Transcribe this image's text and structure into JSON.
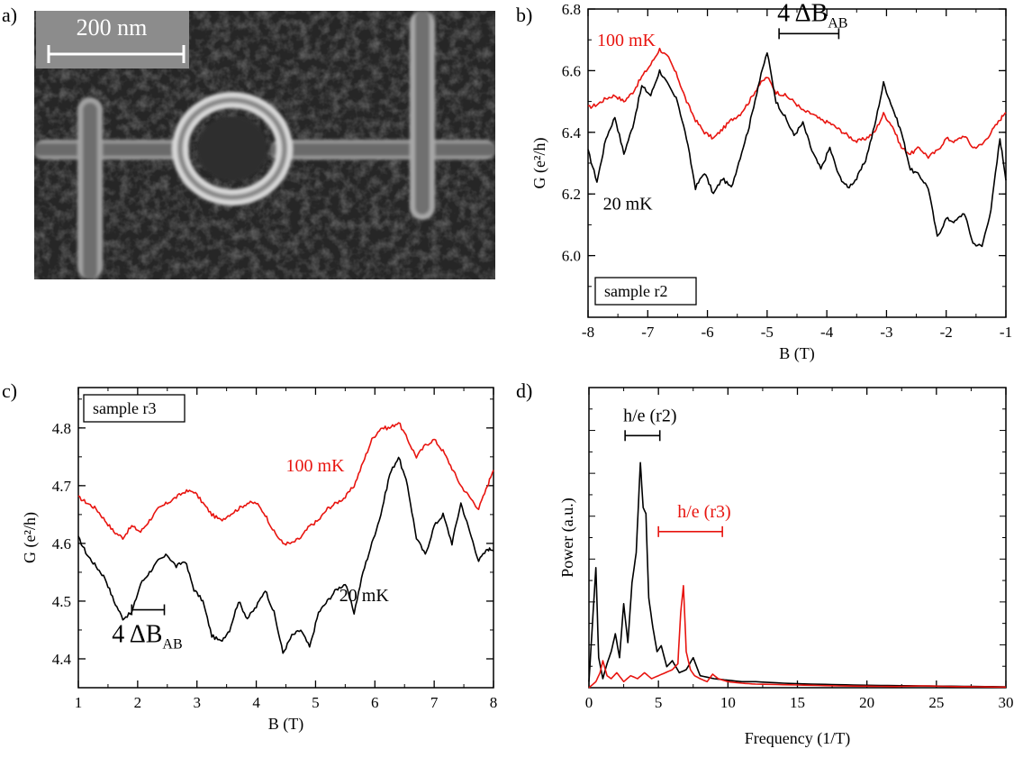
{
  "colors": {
    "black": "#000000",
    "red": "#e8140f",
    "sem_bg": "#202020",
    "sem_ring": "#d8d8d8"
  },
  "panel_a": {
    "label": "a)",
    "scalebar_text": "200 nm",
    "description_hidden": ""
  },
  "chart_data": [
    {
      "panel": "b)",
      "type": "line",
      "xlabel": "B (T)",
      "ylabel": "G (e²/h)",
      "xlim": [
        -8,
        -1
      ],
      "ylim": [
        5.8,
        6.8
      ],
      "xticks": [
        -8,
        -7,
        -6,
        -5,
        -4,
        -3,
        -2,
        -1
      ],
      "xtick_labels": [
        "-8",
        "-7",
        "-6",
        "-5",
        "-4",
        "-3",
        "-2",
        "-1"
      ],
      "yticks": [
        6.0,
        6.2,
        6.4,
        6.6,
        6.8
      ],
      "ytick_labels": [
        "6.0",
        "6.2",
        "6.4",
        "6.6",
        "6.8"
      ],
      "sample_label": "sample r2",
      "annotation": {
        "text": "4 ΔB",
        "sub": "AB",
        "bar_x": [
          -4.8,
          -3.8
        ],
        "bar_y": 6.72
      },
      "series": [
        {
          "name": "100 mK",
          "color": "#e8140f",
          "x": [
            -8.0,
            -7.85,
            -7.7,
            -7.55,
            -7.4,
            -7.25,
            -7.1,
            -6.95,
            -6.8,
            -6.65,
            -6.5,
            -6.35,
            -6.2,
            -6.05,
            -5.9,
            -5.75,
            -5.6,
            -5.45,
            -5.3,
            -5.15,
            -5.0,
            -4.85,
            -4.7,
            -4.55,
            -4.4,
            -4.25,
            -4.1,
            -3.95,
            -3.8,
            -3.65,
            -3.5,
            -3.35,
            -3.2,
            -3.05,
            -2.9,
            -2.75,
            -2.6,
            -2.45,
            -2.3,
            -2.15,
            -2.0,
            -1.85,
            -1.7,
            -1.55,
            -1.4,
            -1.25,
            -1.1,
            -1.0
          ],
          "y": [
            6.48,
            6.49,
            6.51,
            6.52,
            6.5,
            6.53,
            6.58,
            6.62,
            6.67,
            6.64,
            6.58,
            6.5,
            6.44,
            6.4,
            6.38,
            6.41,
            6.44,
            6.46,
            6.5,
            6.55,
            6.58,
            6.53,
            6.52,
            6.5,
            6.47,
            6.46,
            6.44,
            6.43,
            6.41,
            6.39,
            6.37,
            6.38,
            6.4,
            6.46,
            6.42,
            6.35,
            6.33,
            6.35,
            6.32,
            6.34,
            6.38,
            6.37,
            6.39,
            6.35,
            6.36,
            6.4,
            6.44,
            6.47
          ]
        },
        {
          "name": "20 mK",
          "color": "#000000",
          "x": [
            -8.0,
            -7.85,
            -7.7,
            -7.55,
            -7.4,
            -7.25,
            -7.1,
            -6.95,
            -6.8,
            -6.65,
            -6.5,
            -6.35,
            -6.2,
            -6.05,
            -5.9,
            -5.75,
            -5.6,
            -5.45,
            -5.3,
            -5.15,
            -5.0,
            -4.85,
            -4.7,
            -4.55,
            -4.4,
            -4.25,
            -4.1,
            -3.95,
            -3.8,
            -3.65,
            -3.5,
            -3.35,
            -3.2,
            -3.05,
            -2.9,
            -2.75,
            -2.6,
            -2.45,
            -2.3,
            -2.15,
            -2.0,
            -1.85,
            -1.7,
            -1.55,
            -1.4,
            -1.25,
            -1.1,
            -1.0
          ],
          "y": [
            6.34,
            6.24,
            6.38,
            6.45,
            6.33,
            6.42,
            6.55,
            6.52,
            6.6,
            6.55,
            6.5,
            6.38,
            6.22,
            6.27,
            6.2,
            6.25,
            6.22,
            6.32,
            6.42,
            6.55,
            6.66,
            6.5,
            6.45,
            6.39,
            6.43,
            6.34,
            6.28,
            6.35,
            6.26,
            6.22,
            6.25,
            6.31,
            6.42,
            6.56,
            6.48,
            6.4,
            6.28,
            6.26,
            6.22,
            6.06,
            6.12,
            6.11,
            6.14,
            6.04,
            6.03,
            6.15,
            6.38,
            6.25
          ]
        }
      ],
      "series_labels": [
        {
          "text": "100 mK",
          "color": "#e8140f",
          "x": -7.85,
          "y": 6.68
        },
        {
          "text": "20 mK",
          "color": "#000000",
          "x": -7.75,
          "y": 6.15
        }
      ]
    },
    {
      "panel": "c)",
      "type": "line",
      "xlabel": "B (T)",
      "ylabel": "G (e²/h)",
      "xlim": [
        1,
        8
      ],
      "ylim": [
        4.35,
        4.87
      ],
      "xticks": [
        1,
        2,
        3,
        4,
        5,
        6,
        7,
        8
      ],
      "xtick_labels": [
        "1",
        "2",
        "3",
        "4",
        "5",
        "6",
        "7",
        "8"
      ],
      "yticks": [
        4.4,
        4.5,
        4.6,
        4.7,
        4.8
      ],
      "ytick_labels": [
        "4.4",
        "4.5",
        "4.6",
        "4.7",
        "4.8"
      ],
      "sample_label": "sample r3",
      "annotation": {
        "text": "4 ΔB",
        "sub": "AB",
        "bar_x": [
          1.9,
          2.45
        ],
        "bar_y": 4.485
      },
      "series": [
        {
          "name": "100 mK",
          "color": "#e8140f",
          "x": [
            1.0,
            1.15,
            1.3,
            1.45,
            1.6,
            1.75,
            1.9,
            2.05,
            2.2,
            2.35,
            2.5,
            2.65,
            2.8,
            2.95,
            3.1,
            3.25,
            3.4,
            3.55,
            3.7,
            3.85,
            4.0,
            4.15,
            4.3,
            4.45,
            4.6,
            4.75,
            4.9,
            5.05,
            5.2,
            5.35,
            5.5,
            5.65,
            5.8,
            5.95,
            6.1,
            6.25,
            6.4,
            6.55,
            6.7,
            6.85,
            7.0,
            7.15,
            7.3,
            7.45,
            7.6,
            7.75,
            7.9,
            8.0
          ],
          "y": [
            4.68,
            4.67,
            4.66,
            4.64,
            4.62,
            4.61,
            4.63,
            4.62,
            4.64,
            4.66,
            4.67,
            4.68,
            4.69,
            4.69,
            4.67,
            4.65,
            4.64,
            4.65,
            4.66,
            4.67,
            4.67,
            4.65,
            4.62,
            4.6,
            4.6,
            4.61,
            4.63,
            4.64,
            4.66,
            4.67,
            4.68,
            4.7,
            4.74,
            4.78,
            4.8,
            4.8,
            4.81,
            4.78,
            4.75,
            4.77,
            4.78,
            4.76,
            4.73,
            4.7,
            4.68,
            4.66,
            4.7,
            4.73
          ]
        },
        {
          "name": "20 mK",
          "color": "#000000",
          "x": [
            1.0,
            1.15,
            1.3,
            1.45,
            1.6,
            1.75,
            1.9,
            2.05,
            2.2,
            2.35,
            2.5,
            2.65,
            2.8,
            2.95,
            3.1,
            3.25,
            3.4,
            3.55,
            3.7,
            3.85,
            4.0,
            4.15,
            4.3,
            4.45,
            4.6,
            4.75,
            4.9,
            5.05,
            5.2,
            5.35,
            5.5,
            5.65,
            5.8,
            5.95,
            6.1,
            6.25,
            6.4,
            6.55,
            6.7,
            6.85,
            7.0,
            7.15,
            7.3,
            7.45,
            7.6,
            7.75,
            7.9,
            8.0
          ],
          "y": [
            4.61,
            4.58,
            4.56,
            4.54,
            4.5,
            4.47,
            4.48,
            4.53,
            4.55,
            4.57,
            4.58,
            4.56,
            4.57,
            4.52,
            4.5,
            4.44,
            4.43,
            4.45,
            4.5,
            4.47,
            4.49,
            4.52,
            4.48,
            4.41,
            4.44,
            4.45,
            4.42,
            4.48,
            4.5,
            4.52,
            4.53,
            4.48,
            4.55,
            4.6,
            4.65,
            4.72,
            4.75,
            4.7,
            4.61,
            4.58,
            4.63,
            4.65,
            4.6,
            4.67,
            4.62,
            4.57,
            4.59,
            4.59
          ]
        }
      ],
      "series_labels": [
        {
          "text": "100 mK",
          "color": "#e8140f",
          "x": 4.5,
          "y": 4.725
        },
        {
          "text": "20 mK",
          "color": "#000000",
          "x": 5.4,
          "y": 4.5
        }
      ]
    },
    {
      "panel": "d)",
      "type": "line",
      "xlabel": "Frequency (1/T)",
      "ylabel": "Power (a.u.)",
      "xlim": [
        0,
        30
      ],
      "ylim": [
        0,
        1.0
      ],
      "xticks": [
        0,
        5,
        10,
        15,
        20,
        25,
        30
      ],
      "xtick_labels": [
        "0",
        "5",
        "10",
        "15",
        "20",
        "25",
        "30"
      ],
      "yticks": [],
      "ytick_labels": [],
      "annotations": [
        {
          "text": "h/e (r2)",
          "color": "#000000",
          "bar_x": [
            2.6,
            5.1
          ],
          "bar_y": 0.84,
          "text_x": 1.3,
          "text_y": 0.9
        },
        {
          "text": "h/e (r3)",
          "color": "#e8140f",
          "bar_x": [
            5.0,
            9.6
          ],
          "bar_y": 0.52,
          "text_x": 5.2,
          "text_y": 0.58
        }
      ],
      "series": [
        {
          "name": "r2",
          "color": "#000000",
          "x": [
            0.0,
            0.3,
            0.5,
            0.7,
            1.0,
            1.3,
            1.6,
            1.9,
            2.2,
            2.5,
            2.8,
            3.1,
            3.4,
            3.7,
            3.9,
            4.1,
            4.3,
            4.6,
            4.9,
            5.2,
            5.6,
            6.0,
            6.5,
            7.0,
            7.5,
            8.0,
            9.0,
            10.0,
            11.0,
            12.0,
            14.0,
            16.0,
            18.0,
            20.0,
            22.0,
            24.0,
            26.0,
            28.0,
            30.0
          ],
          "y": [
            0.02,
            0.25,
            0.4,
            0.1,
            0.03,
            0.08,
            0.12,
            0.18,
            0.1,
            0.28,
            0.15,
            0.35,
            0.45,
            0.75,
            0.6,
            0.58,
            0.3,
            0.2,
            0.12,
            0.14,
            0.07,
            0.09,
            0.05,
            0.06,
            0.1,
            0.04,
            0.03,
            0.025,
            0.02,
            0.02,
            0.015,
            0.012,
            0.01,
            0.008,
            0.007,
            0.006,
            0.005,
            0.004,
            0.003
          ]
        },
        {
          "name": "r3",
          "color": "#e8140f",
          "x": [
            0.0,
            0.5,
            0.8,
            1.0,
            1.3,
            1.6,
            2.0,
            2.5,
            3.0,
            3.5,
            4.0,
            4.5,
            5.0,
            5.5,
            6.0,
            6.4,
            6.6,
            6.8,
            7.0,
            7.3,
            7.6,
            8.0,
            8.5,
            8.9,
            9.3,
            10.0,
            11.0,
            12.0,
            14.0,
            16.0,
            18.0,
            20.0,
            22.0,
            24.0,
            26.0,
            28.0,
            30.0
          ],
          "y": [
            0.0,
            0.02,
            0.05,
            0.09,
            0.04,
            0.03,
            0.05,
            0.02,
            0.04,
            0.03,
            0.05,
            0.03,
            0.04,
            0.05,
            0.06,
            0.08,
            0.25,
            0.34,
            0.12,
            0.06,
            0.04,
            0.03,
            0.02,
            0.045,
            0.03,
            0.02,
            0.015,
            0.012,
            0.01,
            0.008,
            0.006,
            0.005,
            0.004,
            0.006,
            0.004,
            0.003,
            0.002
          ]
        }
      ]
    }
  ]
}
